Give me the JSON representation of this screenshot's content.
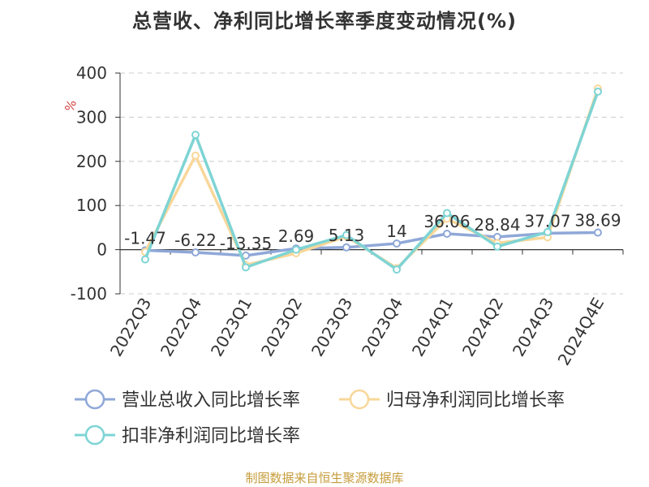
{
  "title": "总营收、净利同比增长率季度变动情况(%)",
  "source": "制图数据来自恒生聚源数据库",
  "chart_data": {
    "type": "line",
    "title": "总营收、净利同比增长率季度变动情况(%)",
    "ylabel": "%",
    "xlabel": "",
    "ylim": [
      -100,
      400
    ],
    "yticks": [
      "400",
      "300",
      "200",
      "100",
      "0",
      "-100"
    ],
    "grid": true,
    "legend_position": "bottom-left",
    "categories": [
      "2022Q3",
      "2022Q4",
      "2023Q1",
      "2023Q2",
      "2023Q3",
      "2023Q4",
      "2024Q1",
      "2024Q2",
      "2024Q3",
      "2024Q4E"
    ],
    "series": [
      {
        "name": "营业总收入同比增长率",
        "color": "#8fa8d8",
        "values": [
          -1.47,
          -6.22,
          -13.35,
          2.69,
          5.13,
          14,
          36.06,
          28.84,
          37.07,
          38.69
        ],
        "labels": [
          "-1.47",
          "-6.22",
          "-13.35",
          "2.69",
          "5.13",
          "14",
          "36.06",
          "28.84",
          "37.07",
          "38.69"
        ]
      },
      {
        "name": "归母净利润同比增长率",
        "color": "#f9d79a",
        "values": [
          -5,
          213,
          -35,
          -8,
          30,
          -42,
          70,
          15,
          28,
          365
        ]
      },
      {
        "name": "扣非净利润同比增长率",
        "color": "#7ed4d4",
        "values": [
          -22,
          260,
          -40,
          0,
          33,
          -45,
          83,
          7,
          40,
          358
        ]
      }
    ]
  }
}
